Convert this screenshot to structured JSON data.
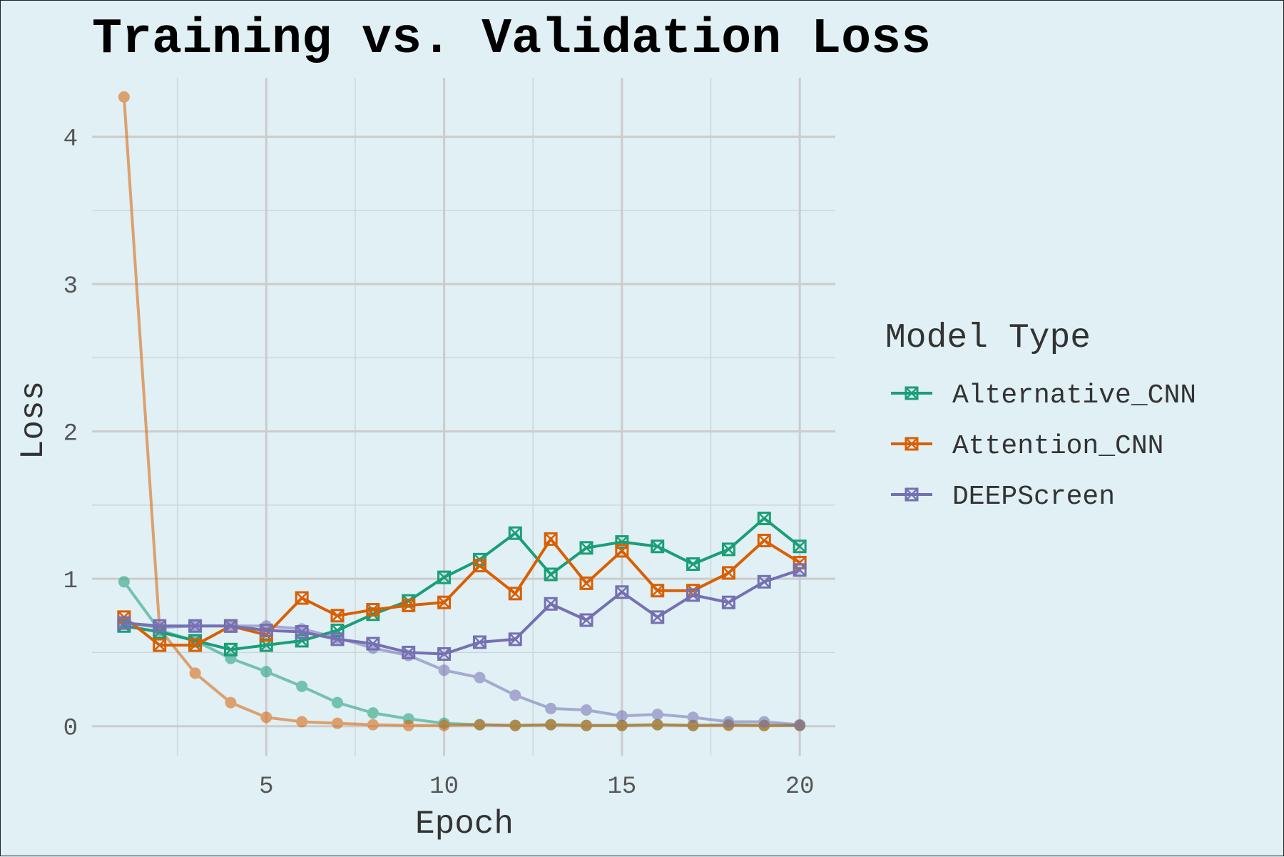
{
  "chart_data": {
    "type": "line",
    "title": "Training vs. Validation Loss",
    "xlabel": "Epoch",
    "ylabel": "Loss",
    "xlim": [
      0.1,
      21
    ],
    "ylim": [
      -0.2,
      4.4
    ],
    "xticks": [
      5,
      10,
      15,
      20
    ],
    "yticks": [
      0,
      1,
      2,
      3,
      4
    ],
    "grid": true,
    "legend_title": "Model Type",
    "legend_position": "right",
    "x": [
      1,
      2,
      3,
      4,
      5,
      6,
      7,
      8,
      9,
      10,
      11,
      12,
      13,
      14,
      15,
      16,
      17,
      18,
      19,
      20
    ],
    "series": [
      {
        "name": "Alternative_CNN",
        "color": "#1b9e77",
        "training_loss": [
          0.98,
          0.65,
          0.58,
          0.46,
          0.37,
          0.27,
          0.16,
          0.09,
          0.05,
          0.02,
          0.01,
          0.005,
          0.01,
          0.005,
          0.005,
          0.01,
          0.005,
          0.01,
          0.005,
          0.005
        ],
        "validation_loss": [
          0.68,
          0.64,
          0.58,
          0.52,
          0.55,
          0.58,
          0.65,
          0.76,
          0.85,
          1.01,
          1.13,
          1.31,
          1.03,
          1.21,
          1.25,
          1.22,
          1.1,
          1.2,
          1.41,
          1.22
        ]
      },
      {
        "name": "Attention_CNN",
        "color": "#d95f02",
        "training_loss": [
          4.27,
          0.66,
          0.36,
          0.16,
          0.06,
          0.03,
          0.02,
          0.01,
          0.005,
          0.005,
          0.01,
          0.005,
          0.01,
          0.005,
          0.005,
          0.01,
          0.005,
          0.005,
          0.005,
          0.005
        ],
        "validation_loss": [
          0.74,
          0.55,
          0.55,
          0.68,
          0.62,
          0.87,
          0.75,
          0.79,
          0.82,
          0.84,
          1.09,
          0.9,
          1.27,
          0.97,
          1.19,
          0.92,
          0.92,
          1.04,
          1.26,
          1.11
        ]
      },
      {
        "name": "DEEPScreen",
        "color": "#7570b3",
        "training_loss": [
          0.7,
          0.67,
          0.68,
          0.68,
          0.68,
          0.66,
          0.6,
          0.53,
          0.48,
          0.38,
          0.33,
          0.21,
          0.12,
          0.11,
          0.07,
          0.08,
          0.06,
          0.03,
          0.03,
          0.01
        ],
        "validation_loss": [
          0.7,
          0.68,
          0.68,
          0.68,
          0.65,
          0.64,
          0.59,
          0.56,
          0.5,
          0.49,
          0.57,
          0.59,
          0.83,
          0.72,
          0.91,
          0.74,
          0.89,
          0.84,
          0.98,
          1.06
        ]
      }
    ]
  }
}
